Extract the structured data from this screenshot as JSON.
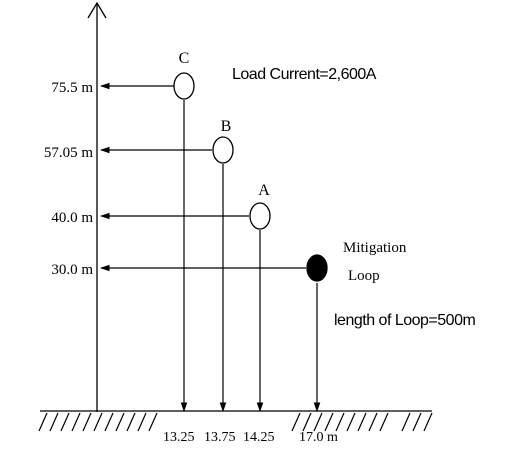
{
  "load_current": "Load Current=2,600A",
  "loop_length": "length of Loop=500m",
  "mitigation_line1": "Mitigation",
  "mitigation_line2": "Loop",
  "conductors": [
    {
      "label": "C",
      "height_label": "75.5 m",
      "ground_label": "13.25"
    },
    {
      "label": "B",
      "height_label": "57.05 m",
      "ground_label": "13.75"
    },
    {
      "label": "A",
      "height_label": "40.0 m",
      "ground_label": "14.25"
    }
  ],
  "loop": {
    "height_label": "30.0 m",
    "ground_label": "17.0 m"
  }
}
